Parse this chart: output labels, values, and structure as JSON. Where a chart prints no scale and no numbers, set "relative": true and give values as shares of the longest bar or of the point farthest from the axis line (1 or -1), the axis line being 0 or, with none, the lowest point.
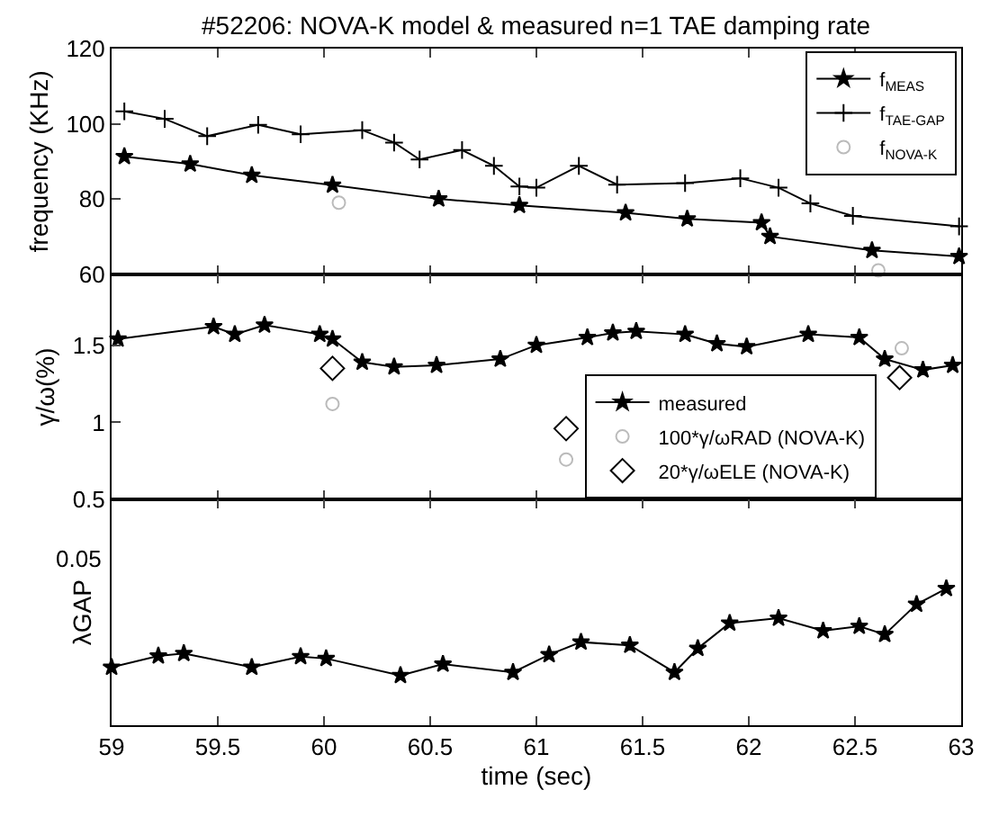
{
  "chart_data": [
    {
      "type": "scatter",
      "title": "#52206: NOVA-K model & measured n=1 TAE damping rate",
      "ylabel": "frequency (KHz)",
      "xlim": [
        59,
        63
      ],
      "xticks": [
        59,
        59.5,
        60,
        60.5,
        61,
        61.5,
        62,
        62.5,
        63
      ],
      "ylim": [
        60,
        120
      ],
      "yticks": [
        60,
        80,
        100,
        120
      ],
      "tick_labels": "y",
      "legend": "top right",
      "series": [
        {
          "name": "f$_{MEAS}$",
          "type": "line",
          "color": "#000000",
          "marker": "star",
          "line_style": "solid",
          "x": [
            59.06,
            59.37,
            59.66,
            60.04,
            60.54,
            60.92,
            61.42,
            61.71,
            62.06,
            62.1,
            62.58,
            62.99
          ],
          "values": [
            91.3,
            89.3,
            86.3,
            83.7,
            80,
            78.3,
            76.3,
            74.7,
            73.7,
            70,
            66.3,
            64.7
          ]
        },
        {
          "name": "f$_{TAE-GAP}$",
          "type": "line",
          "color": "#000000",
          "marker": "cross",
          "line_style": "solid",
          "x": [
            59.06,
            59.25,
            59.45,
            59.69,
            59.89,
            60.18,
            60.33,
            60.45,
            60.65,
            60.8,
            60.92,
            61.0,
            61.2,
            61.38,
            61.7,
            61.96,
            62.14,
            62.29,
            62.49,
            62.99
          ],
          "values": [
            103.3,
            101.3,
            96.7,
            99.7,
            97.2,
            98.3,
            95,
            90.5,
            93,
            88.8,
            83.3,
            83,
            88.8,
            83.8,
            84.2,
            85.5,
            83,
            78.8,
            75.5,
            72.7
          ]
        },
        {
          "name": "f$_{NOVA-K}$",
          "color": "#bbbbbb",
          "marker": "circle",
          "x": [
            60.07,
            62.61
          ],
          "values": [
            79,
            61
          ]
        }
      ]
    },
    {
      "type": "scatter",
      "ylabel": "γ/ω(%)",
      "xlim": [
        59,
        63
      ],
      "xticks": [
        59,
        59.5,
        60,
        60.5,
        61,
        61.5,
        62,
        62.5,
        63
      ],
      "ylim": [
        0.5,
        1.96
      ],
      "yticks": [
        0.5,
        1,
        1.5
      ],
      "tick_labels": "y",
      "legend": "bottom right",
      "series": [
        {
          "name": "measured",
          "type": "line",
          "color": "#000000",
          "marker": "star",
          "line_style": "solid",
          "x": [
            59.03,
            59.48,
            59.58,
            59.72,
            59.98,
            60.04,
            60.18,
            60.33,
            60.53,
            60.83,
            61.0,
            61.24,
            61.36,
            61.47,
            61.7,
            61.85,
            61.99,
            62.28,
            62.52,
            62.64,
            62.82,
            62.96
          ],
          "values": [
            1.54,
            1.62,
            1.57,
            1.63,
            1.57,
            1.54,
            1.39,
            1.36,
            1.37,
            1.41,
            1.5,
            1.55,
            1.58,
            1.59,
            1.57,
            1.51,
            1.49,
            1.57,
            1.55,
            1.41,
            1.34,
            1.37
          ]
        },
        {
          "name": "100*γ/ωRAD (NOVA-K)",
          "color": "#bbbbbb",
          "marker": "circle",
          "x": [
            60.04,
            61.14,
            62.72
          ],
          "values": [
            1.12,
            0.76,
            1.48
          ]
        },
        {
          "name": "20*γ/ωELE (NOVA-K)",
          "color": "#000000",
          "marker": "diamond",
          "x": [
            60.04,
            61.14,
            62.71
          ],
          "values": [
            1.35,
            0.96,
            1.29
          ]
        }
      ]
    },
    {
      "type": "line",
      "relative": true,
      "ylabel": "λGAP",
      "xlabel": "time (sec)",
      "xlim": [
        59,
        63
      ],
      "xticks": [
        59,
        59.5,
        60,
        60.5,
        61,
        61.5,
        62,
        62.5,
        63
      ],
      "tick_labels": "x",
      "annotations": [
        "0.05"
      ],
      "series": [
        {
          "color": "#000000",
          "marker": "star",
          "line_style": "solid",
          "x": [
            59.0,
            59.22,
            59.34,
            59.66,
            59.89,
            60.01,
            60.36,
            60.56,
            60.89,
            61.06,
            61.21,
            61.44,
            61.65,
            61.76,
            61.91,
            62.14,
            62.35,
            62.52,
            62.64,
            62.79,
            62.93
          ],
          "values": [
            0.424,
            0.507,
            0.525,
            0.424,
            0.502,
            0.488,
            0.364,
            0.447,
            0.387,
            0.516,
            0.608,
            0.585,
            0.387,
            0.562,
            0.747,
            0.783,
            0.691,
            0.724,
            0.664,
            0.885,
            1
          ]
        }
      ]
    }
  ]
}
